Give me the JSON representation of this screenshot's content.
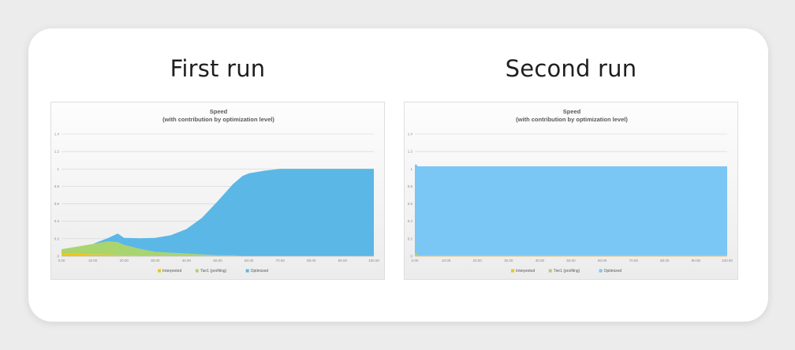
{
  "panels": [
    {
      "heading": "First run",
      "chart_data": {
        "type": "area",
        "title": "Speed",
        "subtitle": "(with contribution by optimization level)",
        "xlabel": "",
        "ylabel": "",
        "ylim": [
          0,
          1.4
        ],
        "xlim": [
          0,
          100
        ],
        "yticks": [
          "0",
          "0.2",
          "0.4",
          "0.6",
          "0.8",
          "1",
          "1.2",
          "1.4"
        ],
        "xticks": [
          "0.00",
          "10.00",
          "20.00",
          "30.00",
          "40.00",
          "50.00",
          "60.00",
          "70.00",
          "80.00",
          "90.00",
          "100.00"
        ],
        "grid": true,
        "legend_position": "bottom",
        "x": [
          0,
          5,
          10,
          15,
          18,
          20,
          25,
          30,
          35,
          40,
          45,
          50,
          55,
          58,
          60,
          65,
          70,
          75,
          80,
          85,
          90,
          95,
          100
        ],
        "series": [
          {
            "name": "Interpreted",
            "color": "#f0c419",
            "values": [
              0.03,
              0.03,
              0.02,
              0.02,
              0.01,
              0.01,
              0.005,
              0,
              0,
              0,
              0,
              0,
              0,
              0,
              0,
              0,
              0,
              0,
              0,
              0,
              0,
              0,
              0
            ]
          },
          {
            "name": "Tier1 (profiling)",
            "color": "#a9d46e",
            "values": [
              0.05,
              0.08,
              0.12,
              0.15,
              0.15,
              0.12,
              0.08,
              0.05,
              0.04,
              0.03,
              0.02,
              0.01,
              0.01,
              0,
              0,
              0,
              0,
              0,
              0,
              0,
              0,
              0,
              0
            ]
          },
          {
            "name": "Optimized",
            "color": "#5bb7e6",
            "values": [
              0,
              0,
              0,
              0.04,
              0.1,
              0.08,
              0.12,
              0.16,
              0.2,
              0.28,
              0.42,
              0.62,
              0.82,
              0.92,
              0.95,
              0.98,
              1,
              1,
              1,
              1,
              1,
              1,
              1
            ]
          }
        ]
      }
    },
    {
      "heading": "Second run",
      "chart_data": {
        "type": "area",
        "title": "Speed",
        "subtitle": "(with contribution by optimization level)",
        "xlabel": "",
        "ylabel": "",
        "ylim": [
          0,
          1.4
        ],
        "xlim": [
          0,
          100
        ],
        "yticks": [
          "0",
          "0.2",
          "0.4",
          "0.6",
          "0.8",
          "1",
          "1.2",
          "1.4"
        ],
        "xticks": [
          "0.00",
          "10.00",
          "20.00",
          "30.00",
          "40.00",
          "50.00",
          "60.00",
          "70.00",
          "80.00",
          "90.00",
          "100.00"
        ],
        "grid": true,
        "legend_position": "bottom",
        "x": [
          0,
          0.5,
          1,
          50,
          99.5,
          100
        ],
        "series": [
          {
            "name": "Interpreted",
            "color": "#f0c419",
            "values": [
              0.02,
              0.02,
              0.01,
              0.01,
              0.01,
              0.01
            ]
          },
          {
            "name": "Tier1 (profiling)",
            "color": "#a9d46e",
            "values": [
              0.01,
              0.01,
              0,
              0,
              0,
              0
            ]
          },
          {
            "name": "Optimized",
            "color": "#7ac6f4",
            "values": [
              1.02,
              1.02,
              1.02,
              1.02,
              1.02,
              1.02
            ]
          }
        ]
      }
    }
  ]
}
